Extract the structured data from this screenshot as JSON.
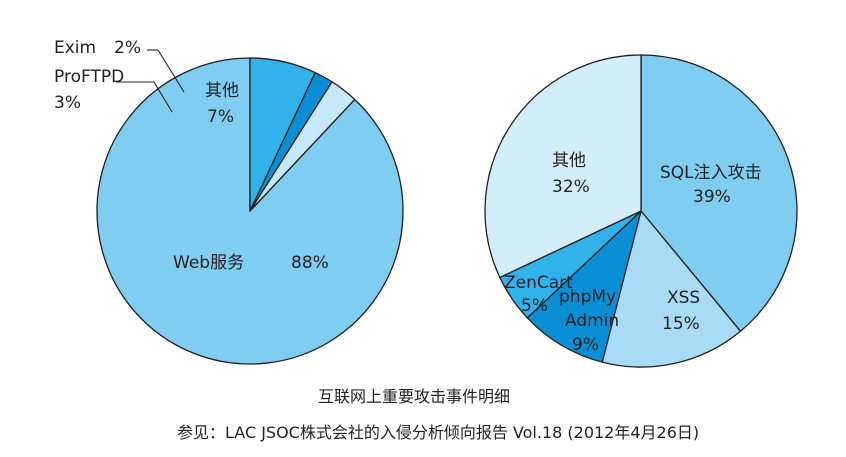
{
  "chart_data": [
    {
      "type": "pie",
      "slices": [
        {
          "label": "Web服务",
          "value_label": "88%",
          "value": 88,
          "color": "#7fcdf0"
        },
        {
          "label": "ProFTPD",
          "value_label": "3%",
          "value": 3,
          "color": "#c5e9f8"
        },
        {
          "label": "Exim",
          "value_label": "2%",
          "value": 2,
          "color": "#0a8fd6"
        },
        {
          "label": "其他",
          "value_label": "7%",
          "value": 7,
          "color": "#32b2ea"
        }
      ]
    },
    {
      "type": "pie",
      "slices": [
        {
          "label": "SQL注入攻击",
          "value_label": "39%",
          "value": 39,
          "color": "#7fcdf0"
        },
        {
          "label": "XSS",
          "value_label": "15%",
          "value": 15,
          "color": "#a8dcf4"
        },
        {
          "label": "phpMy Admin",
          "value_label": "9%",
          "value": 9,
          "color": "#0a8fd6"
        },
        {
          "label": "ZenCart",
          "value_label": "5%",
          "value": 5,
          "color": "#32b2ea"
        },
        {
          "label": "其他",
          "value_label": "32%",
          "value": 32,
          "color": "#d2eefb"
        }
      ]
    }
  ],
  "caption": {
    "title": "互联网上重要攻击事件明细",
    "source": "参见：LAC JSOC株式会社的入侵分析倾向报告 Vol.18 (2012年4月26日)"
  }
}
